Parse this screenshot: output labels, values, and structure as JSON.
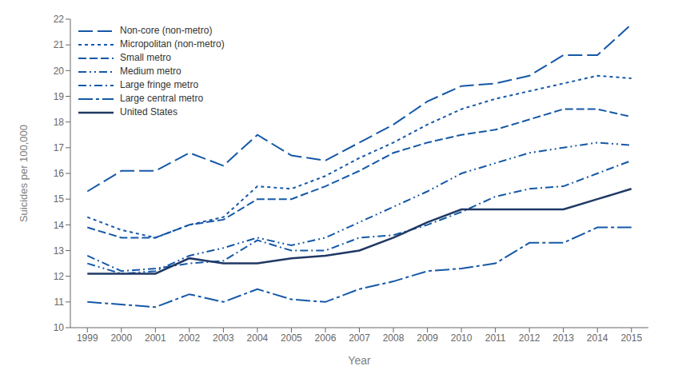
{
  "chart_data": {
    "type": "line",
    "x": [
      1999,
      2000,
      2001,
      2002,
      2003,
      2004,
      2005,
      2006,
      2007,
      2008,
      2009,
      2010,
      2011,
      2012,
      2013,
      2014,
      2015
    ],
    "series": [
      {
        "name": "Non-core (non-metro)",
        "color": "#1558a7",
        "line_style": "long-dashed",
        "values": [
          15.3,
          16.1,
          16.1,
          16.8,
          16.3,
          17.5,
          16.7,
          16.5,
          17.2,
          17.9,
          18.8,
          19.4,
          19.5,
          19.8,
          20.6,
          20.6,
          21.8
        ]
      },
      {
        "name": "Micropolitan (non-metro)",
        "color": "#1558a7",
        "line_style": "dotted",
        "values": [
          14.3,
          13.8,
          13.5,
          14.0,
          14.3,
          15.5,
          15.4,
          15.9,
          16.6,
          17.2,
          17.9,
          18.5,
          18.9,
          19.2,
          19.5,
          19.8,
          19.7
        ]
      },
      {
        "name": "Small metro",
        "color": "#1558a7",
        "line_style": "dashed",
        "values": [
          13.9,
          13.5,
          13.5,
          14.0,
          14.2,
          15.0,
          15.0,
          15.5,
          16.1,
          16.8,
          17.2,
          17.5,
          17.7,
          18.1,
          18.5,
          18.5,
          18.2
        ]
      },
      {
        "name": "Medium metro",
        "color": "#1558a7",
        "line_style": "dash-dot-dot",
        "values": [
          12.5,
          12.1,
          12.2,
          12.8,
          13.1,
          13.5,
          13.2,
          13.5,
          14.1,
          14.7,
          15.3,
          16.0,
          16.4,
          16.8,
          17.0,
          17.2,
          17.1
        ]
      },
      {
        "name": "Large fringe metro",
        "color": "#1558a7",
        "line_style": "dash-dot",
        "values": [
          12.8,
          12.2,
          12.3,
          12.5,
          12.6,
          13.4,
          13.0,
          13.0,
          13.5,
          13.6,
          14.0,
          14.5,
          15.1,
          15.4,
          15.5,
          16.0,
          16.5
        ]
      },
      {
        "name": "Large central metro",
        "color": "#1558a7",
        "line_style": "long-dash-dot",
        "values": [
          11.0,
          10.9,
          10.8,
          11.3,
          11.0,
          11.5,
          11.1,
          11.0,
          11.5,
          11.8,
          12.2,
          12.3,
          12.5,
          13.3,
          13.3,
          13.9,
          13.9
        ]
      },
      {
        "name": "United States",
        "color": "#1f3864",
        "line_style": "solid",
        "values": [
          12.1,
          12.1,
          12.1,
          12.7,
          12.5,
          12.5,
          12.7,
          12.8,
          13.0,
          13.5,
          14.1,
          14.6,
          14.6,
          14.6,
          14.6,
          15.0,
          15.4
        ]
      }
    ],
    "xlabel": "Year",
    "ylabel": "Suicides per 100,000",
    "xlim": [
      1998.5,
      2015.5
    ],
    "xticks": [
      1999,
      2000,
      2001,
      2002,
      2003,
      2004,
      2005,
      2006,
      2007,
      2008,
      2009,
      2010,
      2011,
      2012,
      2013,
      2014,
      2015
    ],
    "ylim": [
      10,
      22
    ],
    "yticks": [
      10,
      11,
      12,
      13,
      14,
      15,
      16,
      17,
      18,
      19,
      20,
      21,
      22
    ],
    "grid": false,
    "legend": "upper left"
  }
}
